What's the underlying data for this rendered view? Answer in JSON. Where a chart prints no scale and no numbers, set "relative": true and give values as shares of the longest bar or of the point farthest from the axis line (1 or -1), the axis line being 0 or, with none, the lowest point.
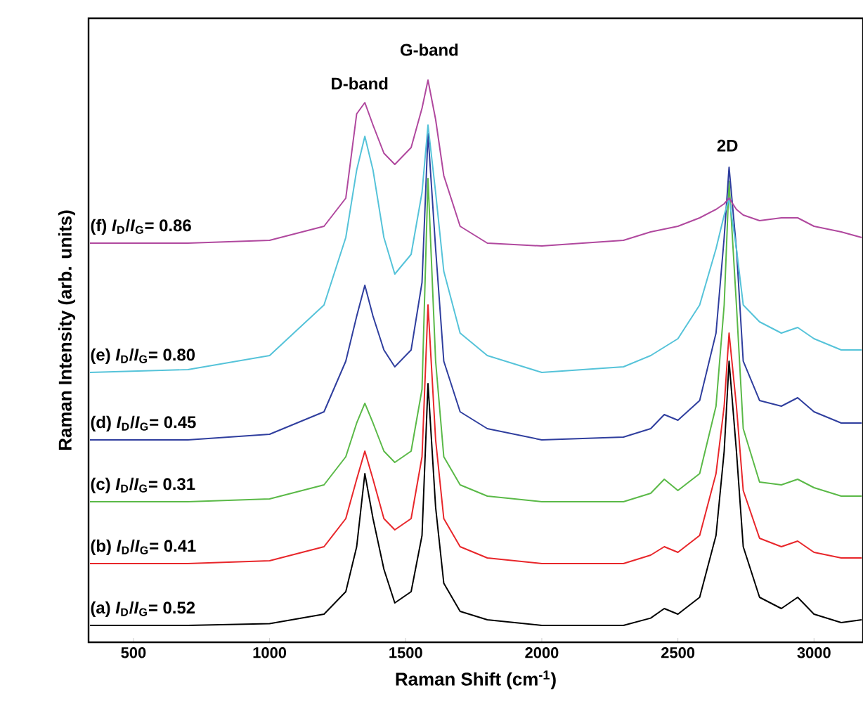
{
  "chart_data": {
    "type": "line",
    "relative": true,
    "xlabel": "Raman Shift (cm$^{-1}$)",
    "ylabel": "Raman Intensity (arb. units)",
    "xlim": [
      335,
      3180
    ],
    "xticks": [
      500,
      1000,
      1500,
      2000,
      2500,
      3000
    ],
    "legend": false,
    "grid": false,
    "marker": "none",
    "line_style": "solid",
    "x": [
      340,
      700,
      1000,
      1200,
      1280,
      1320,
      1350,
      1380,
      1420,
      1460,
      1520,
      1560,
      1582,
      1610,
      1640,
      1700,
      1800,
      2000,
      2300,
      2400,
      2450,
      2500,
      2580,
      2640,
      2670,
      2688,
      2715,
      2740,
      2800,
      2880,
      2940,
      3000,
      3100,
      3175
    ],
    "annotations": [
      "D-band",
      "G-band",
      "2D"
    ],
    "series": [
      {
        "name": "(a) *I*$_{D}$/*I*$_{G}$= 0.52",
        "color": "#000000",
        "values": [
          0.03,
          0.03,
          0.033,
          0.05,
          0.09,
          0.17,
          0.3,
          0.22,
          0.13,
          0.07,
          0.09,
          0.19,
          0.46,
          0.24,
          0.105,
          0.055,
          0.04,
          0.03,
          0.03,
          0.043,
          0.06,
          0.05,
          0.08,
          0.19,
          0.34,
          0.5,
          0.34,
          0.17,
          0.08,
          0.06,
          0.08,
          0.05,
          0.035,
          0.04
        ]
      },
      {
        "name": "(b) *I*$_{D}$/*I*$_{G}$= 0.41",
        "color": "#e8262a",
        "values": [
          0.14,
          0.14,
          0.145,
          0.17,
          0.22,
          0.29,
          0.34,
          0.29,
          0.22,
          0.2,
          0.22,
          0.33,
          0.6,
          0.36,
          0.22,
          0.17,
          0.15,
          0.14,
          0.14,
          0.155,
          0.17,
          0.16,
          0.19,
          0.3,
          0.42,
          0.55,
          0.42,
          0.27,
          0.185,
          0.17,
          0.18,
          0.16,
          0.15,
          0.15
        ]
      },
      {
        "name": "(c) *I*$_{D}$/*I*$_{G}$= 0.31",
        "color": "#5ab947",
        "values": [
          0.25,
          0.25,
          0.255,
          0.28,
          0.33,
          0.39,
          0.425,
          0.39,
          0.34,
          0.32,
          0.34,
          0.45,
          0.825,
          0.5,
          0.33,
          0.28,
          0.26,
          0.25,
          0.25,
          0.265,
          0.29,
          0.27,
          0.3,
          0.42,
          0.6,
          0.82,
          0.6,
          0.38,
          0.285,
          0.28,
          0.29,
          0.275,
          0.26,
          0.26
        ]
      },
      {
        "name": "(d) *I*$_{D}$/*I*$_{G}$= 0.45",
        "color": "#2f3e9e",
        "values": [
          0.36,
          0.36,
          0.37,
          0.41,
          0.5,
          0.58,
          0.635,
          0.58,
          0.52,
          0.49,
          0.52,
          0.64,
          0.905,
          0.7,
          0.5,
          0.41,
          0.38,
          0.36,
          0.365,
          0.38,
          0.405,
          0.395,
          0.43,
          0.55,
          0.72,
          0.845,
          0.7,
          0.5,
          0.43,
          0.42,
          0.435,
          0.41,
          0.39,
          0.39
        ]
      },
      {
        "name": "(e) *I*$_{D}$/*I*$_{G}$= 0.80",
        "color": "#55c3d9",
        "values": [
          0.48,
          0.485,
          0.51,
          0.6,
          0.72,
          0.84,
          0.9,
          0.84,
          0.72,
          0.655,
          0.69,
          0.8,
          0.92,
          0.8,
          0.66,
          0.55,
          0.51,
          0.48,
          0.49,
          0.51,
          0.525,
          0.54,
          0.6,
          0.7,
          0.76,
          0.79,
          0.7,
          0.6,
          0.57,
          0.55,
          0.56,
          0.54,
          0.52,
          0.52
        ]
      },
      {
        "name": "(f) *I*$_{D}$/*I*$_{G}$= 0.86",
        "color": "#b0489e",
        "values": [
          0.71,
          0.71,
          0.715,
          0.74,
          0.79,
          0.94,
          0.96,
          0.92,
          0.87,
          0.85,
          0.88,
          0.95,
          1.0,
          0.93,
          0.83,
          0.74,
          0.71,
          0.705,
          0.715,
          0.73,
          0.735,
          0.74,
          0.755,
          0.77,
          0.78,
          0.79,
          0.77,
          0.76,
          0.75,
          0.755,
          0.755,
          0.74,
          0.73,
          0.72
        ]
      }
    ]
  }
}
